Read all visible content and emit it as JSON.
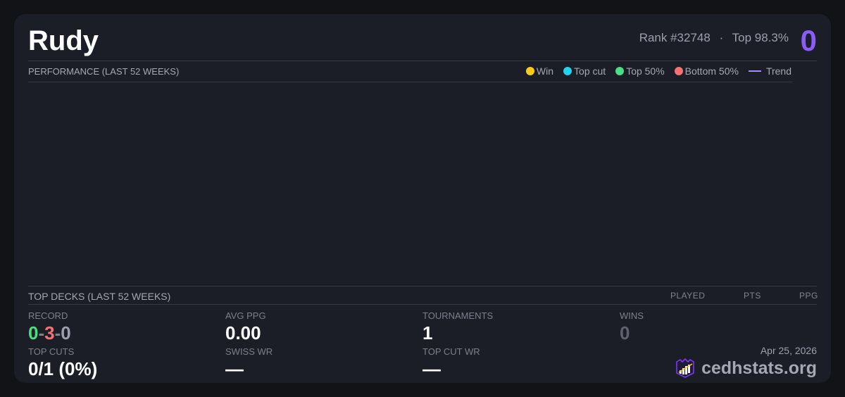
{
  "player": {
    "name": "Rudy",
    "rank": "Rank #32748",
    "separator": "·",
    "top": "Top 98.3%",
    "score": "0"
  },
  "performance": {
    "title": "PERFORMANCE (LAST 52 WEEKS)",
    "legend": [
      {
        "label": "Win",
        "color": "#facc15"
      },
      {
        "label": "Top cut",
        "color": "#22d3ee"
      },
      {
        "label": "Top 50%",
        "color": "#4ade80"
      },
      {
        "label": "Bottom 50%",
        "color": "#f87171"
      },
      {
        "label": "Trend",
        "color": "#a78bfa"
      }
    ]
  },
  "decks": {
    "title": "TOP DECKS (LAST 52 WEEKS)",
    "columns": [
      "PLAYED",
      "PTS",
      "PPG"
    ]
  },
  "stats": {
    "record": {
      "label": "RECORD",
      "wins": "0",
      "losses": "3",
      "draws": "0",
      "sep": "-"
    },
    "avg_ppg": {
      "label": "AVG PPG",
      "value": "0.00"
    },
    "tournaments": {
      "label": "TOURNAMENTS",
      "value": "1"
    },
    "wins": {
      "label": "WINS",
      "value": "0"
    },
    "top_cuts": {
      "label": "TOP CUTS",
      "value": "0/1 (0%)"
    },
    "swiss_wr": {
      "label": "SWISS WR",
      "value": "—"
    },
    "top_cut_wr": {
      "label": "TOP CUT WR",
      "value": "—"
    }
  },
  "footer": {
    "date": "Apr 25, 2026",
    "brand": "cedhstats.org"
  }
}
